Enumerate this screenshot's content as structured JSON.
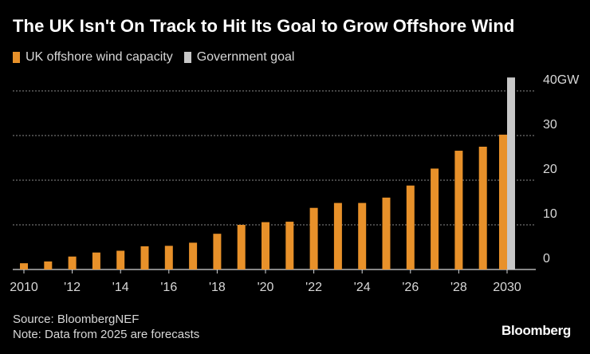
{
  "title": "The UK Isn't On Track to Hit Its Goal to Grow Offshore Wind",
  "legend": [
    {
      "label": "UK offshore wind capacity",
      "color": "#e8912a"
    },
    {
      "label": "Government goal",
      "color": "#c8c8c8"
    }
  ],
  "source": "Source: BloombergNEF",
  "note": "Note: Data from 2025 are forecasts",
  "brand": "Bloomberg",
  "chart_data": {
    "type": "bar",
    "categories": [
      "2010",
      "2011",
      "2012",
      "2013",
      "2014",
      "2015",
      "2016",
      "2017",
      "2018",
      "2019",
      "2020",
      "2021",
      "2022",
      "2023",
      "2024",
      "2025",
      "2026",
      "2027",
      "2028",
      "2029",
      "2030"
    ],
    "x_tick_labels": [
      "2010",
      "",
      "'12",
      "",
      "'14",
      "",
      "'16",
      "",
      "'18",
      "",
      "'20",
      "",
      "'22",
      "",
      "'24",
      "",
      "'26",
      "",
      "'28",
      "",
      "2030"
    ],
    "series": [
      {
        "name": "UK offshore wind capacity",
        "color": "#e8912a",
        "values": [
          1.4,
          1.8,
          2.9,
          3.8,
          4.2,
          5.2,
          5.3,
          6.0,
          8.0,
          10.0,
          10.6,
          10.7,
          13.8,
          14.9,
          14.9,
          16.1,
          18.8,
          22.6,
          26.6,
          27.5,
          30.2
        ]
      },
      {
        "name": "Government goal",
        "color": "#c8c8c8",
        "values": [
          null,
          null,
          null,
          null,
          null,
          null,
          null,
          null,
          null,
          null,
          null,
          null,
          null,
          null,
          null,
          null,
          null,
          null,
          null,
          null,
          43
        ]
      }
    ],
    "y_ticks": [
      0,
      10,
      20,
      30,
      40
    ],
    "y_tick_labels": [
      "0",
      "10",
      "20",
      "30",
      "40GW"
    ],
    "ylim": [
      0,
      43
    ],
    "grid": true,
    "legend_position": "top-left"
  }
}
